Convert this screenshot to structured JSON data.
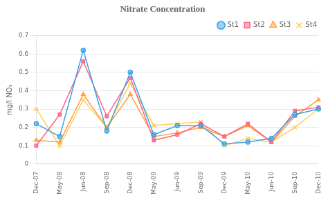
{
  "chart_data": {
    "type": "line",
    "title": "Nitrate Concentration",
    "ylabel": "mg/l NO₃",
    "categories": [
      "Dec-07",
      "May-08",
      "Jun-08",
      "Sep-08",
      "Dec-08",
      "May-09",
      "Jun-09",
      "Sep-09",
      "Dec-09",
      "May-10",
      "Jun-10",
      "Sep-10",
      "Dec-10"
    ],
    "series": [
      {
        "name": "St1",
        "marker": "circle",
        "values": [
          0.22,
          0.15,
          0.62,
          0.18,
          0.5,
          0.16,
          0.21,
          0.21,
          0.11,
          0.12,
          0.14,
          0.27,
          0.3
        ]
      },
      {
        "name": "St2",
        "marker": "square",
        "values": [
          0.1,
          0.27,
          0.56,
          0.26,
          0.47,
          0.13,
          0.16,
          0.22,
          0.15,
          0.22,
          0.12,
          0.29,
          0.31
        ]
      },
      {
        "name": "St3",
        "marker": "triangle",
        "values": [
          0.13,
          0.12,
          0.38,
          0.2,
          0.38,
          0.15,
          0.17,
          0.2,
          0.15,
          0.21,
          0.12,
          0.26,
          0.35
        ]
      },
      {
        "name": "St4",
        "marker": "x",
        "values": [
          0.3,
          0.1,
          0.35,
          0.2,
          0.44,
          0.21,
          0.22,
          0.23,
          0.1,
          0.14,
          0.12,
          0.2,
          0.3
        ]
      }
    ],
    "ylim": [
      0,
      0.7
    ],
    "yticks": [
      0,
      0.1,
      0.2,
      0.3,
      0.4,
      0.5,
      0.6,
      0.7
    ],
    "grid": true,
    "legend": "upper right"
  }
}
